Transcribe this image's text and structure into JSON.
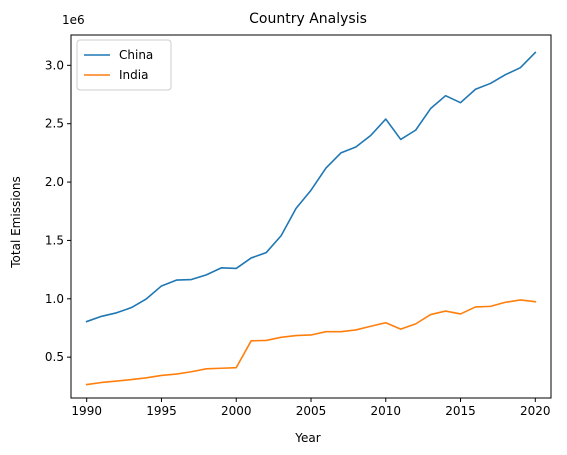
{
  "chart_data": {
    "type": "line",
    "title": "Country Analysis",
    "xlabel": "Year",
    "ylabel": "Total Emissions",
    "y_offset_label": "1e6",
    "xlim": [
      1988.95,
      2021.05
    ],
    "ylim": [
      150000,
      3260000
    ],
    "x_ticks": [
      1990,
      1995,
      2000,
      2005,
      2010,
      2015,
      2020
    ],
    "y_ticks": [
      500000,
      1000000,
      1500000,
      2000000,
      2500000,
      3000000
    ],
    "y_tick_labels": [
      "0.5",
      "1.0",
      "1.5",
      "2.0",
      "2.5",
      "3.0"
    ],
    "legend_position": "upper-left",
    "x": [
      1990,
      1991,
      1992,
      1993,
      1994,
      1995,
      1996,
      1997,
      1998,
      1999,
      2000,
      2001,
      2002,
      2003,
      2004,
      2005,
      2006,
      2007,
      2008,
      2009,
      2010,
      2011,
      2012,
      2013,
      2014,
      2015,
      2016,
      2017,
      2018,
      2019,
      2020
    ],
    "series": [
      {
        "name": "China",
        "color": "#1f77b4",
        "values": [
          805000,
          850000,
          880000,
          925000,
          1000000,
          1110000,
          1160000,
          1165000,
          1205000,
          1265000,
          1260000,
          1350000,
          1395000,
          1540000,
          1775000,
          1930000,
          2120000,
          2250000,
          2300000,
          2400000,
          2540000,
          2365000,
          2445000,
          2630000,
          2740000,
          2680000,
          2795000,
          2845000,
          2920000,
          2980000,
          3110000
        ]
      },
      {
        "name": "India",
        "color": "#ff7f0e",
        "values": [
          265000,
          283000,
          295000,
          308000,
          323000,
          343000,
          355000,
          375000,
          400000,
          405000,
          410000,
          640000,
          643000,
          670000,
          685000,
          690000,
          718000,
          718000,
          733000,
          765000,
          795000,
          740000,
          785000,
          865000,
          895000,
          870000,
          930000,
          935000,
          970000,
          990000,
          975000
        ]
      }
    ]
  }
}
